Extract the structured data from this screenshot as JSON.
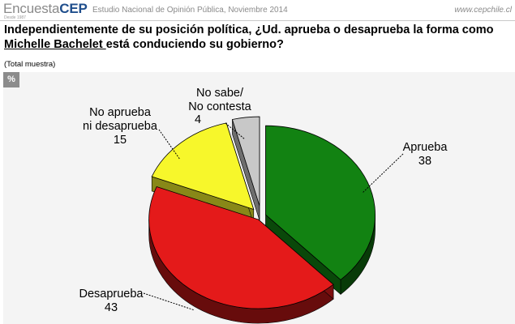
{
  "header": {
    "brand_main": "Encuesta",
    "brand_accent": "CEP",
    "brand_since": "Desde 1987",
    "study": "Estudio Nacional de Opinión Pública, Noviembre 2014",
    "url": "www.cepchile.cl"
  },
  "question": {
    "line1": "Independientemente de su posición política, ¿Ud. aprueba o desaprueba la forma como",
    "line2_underlined": "Michelle Bachelet ",
    "line2_rest": "está conduciendo su gobierno?"
  },
  "sample_note": "(Total muestra)",
  "unit_badge": "%",
  "chart_data": {
    "type": "pie",
    "title": "",
    "unit": "%",
    "slices": [
      {
        "label": "Aprueba",
        "value": 38,
        "color": "#128212"
      },
      {
        "label": "Desaprueba",
        "value": 43,
        "color": "#e41a1a"
      },
      {
        "label": "No aprueba ni desaprueba",
        "value": 15,
        "color": "#f7f72b"
      },
      {
        "label": "No sabe/ No contesta",
        "value": 4,
        "color": "#c8c8c8"
      }
    ],
    "annotations": {
      "aprueba": {
        "line1": "Aprueba",
        "value": "38"
      },
      "desaprueba": {
        "line1": "Desaprueba",
        "value": "43"
      },
      "neutral": {
        "line1": "No aprueba",
        "line2": "ni desaprueba",
        "value": "15"
      },
      "nosabe": {
        "line1": "No sabe/",
        "line2": "No contesta",
        "value": "4"
      }
    }
  }
}
